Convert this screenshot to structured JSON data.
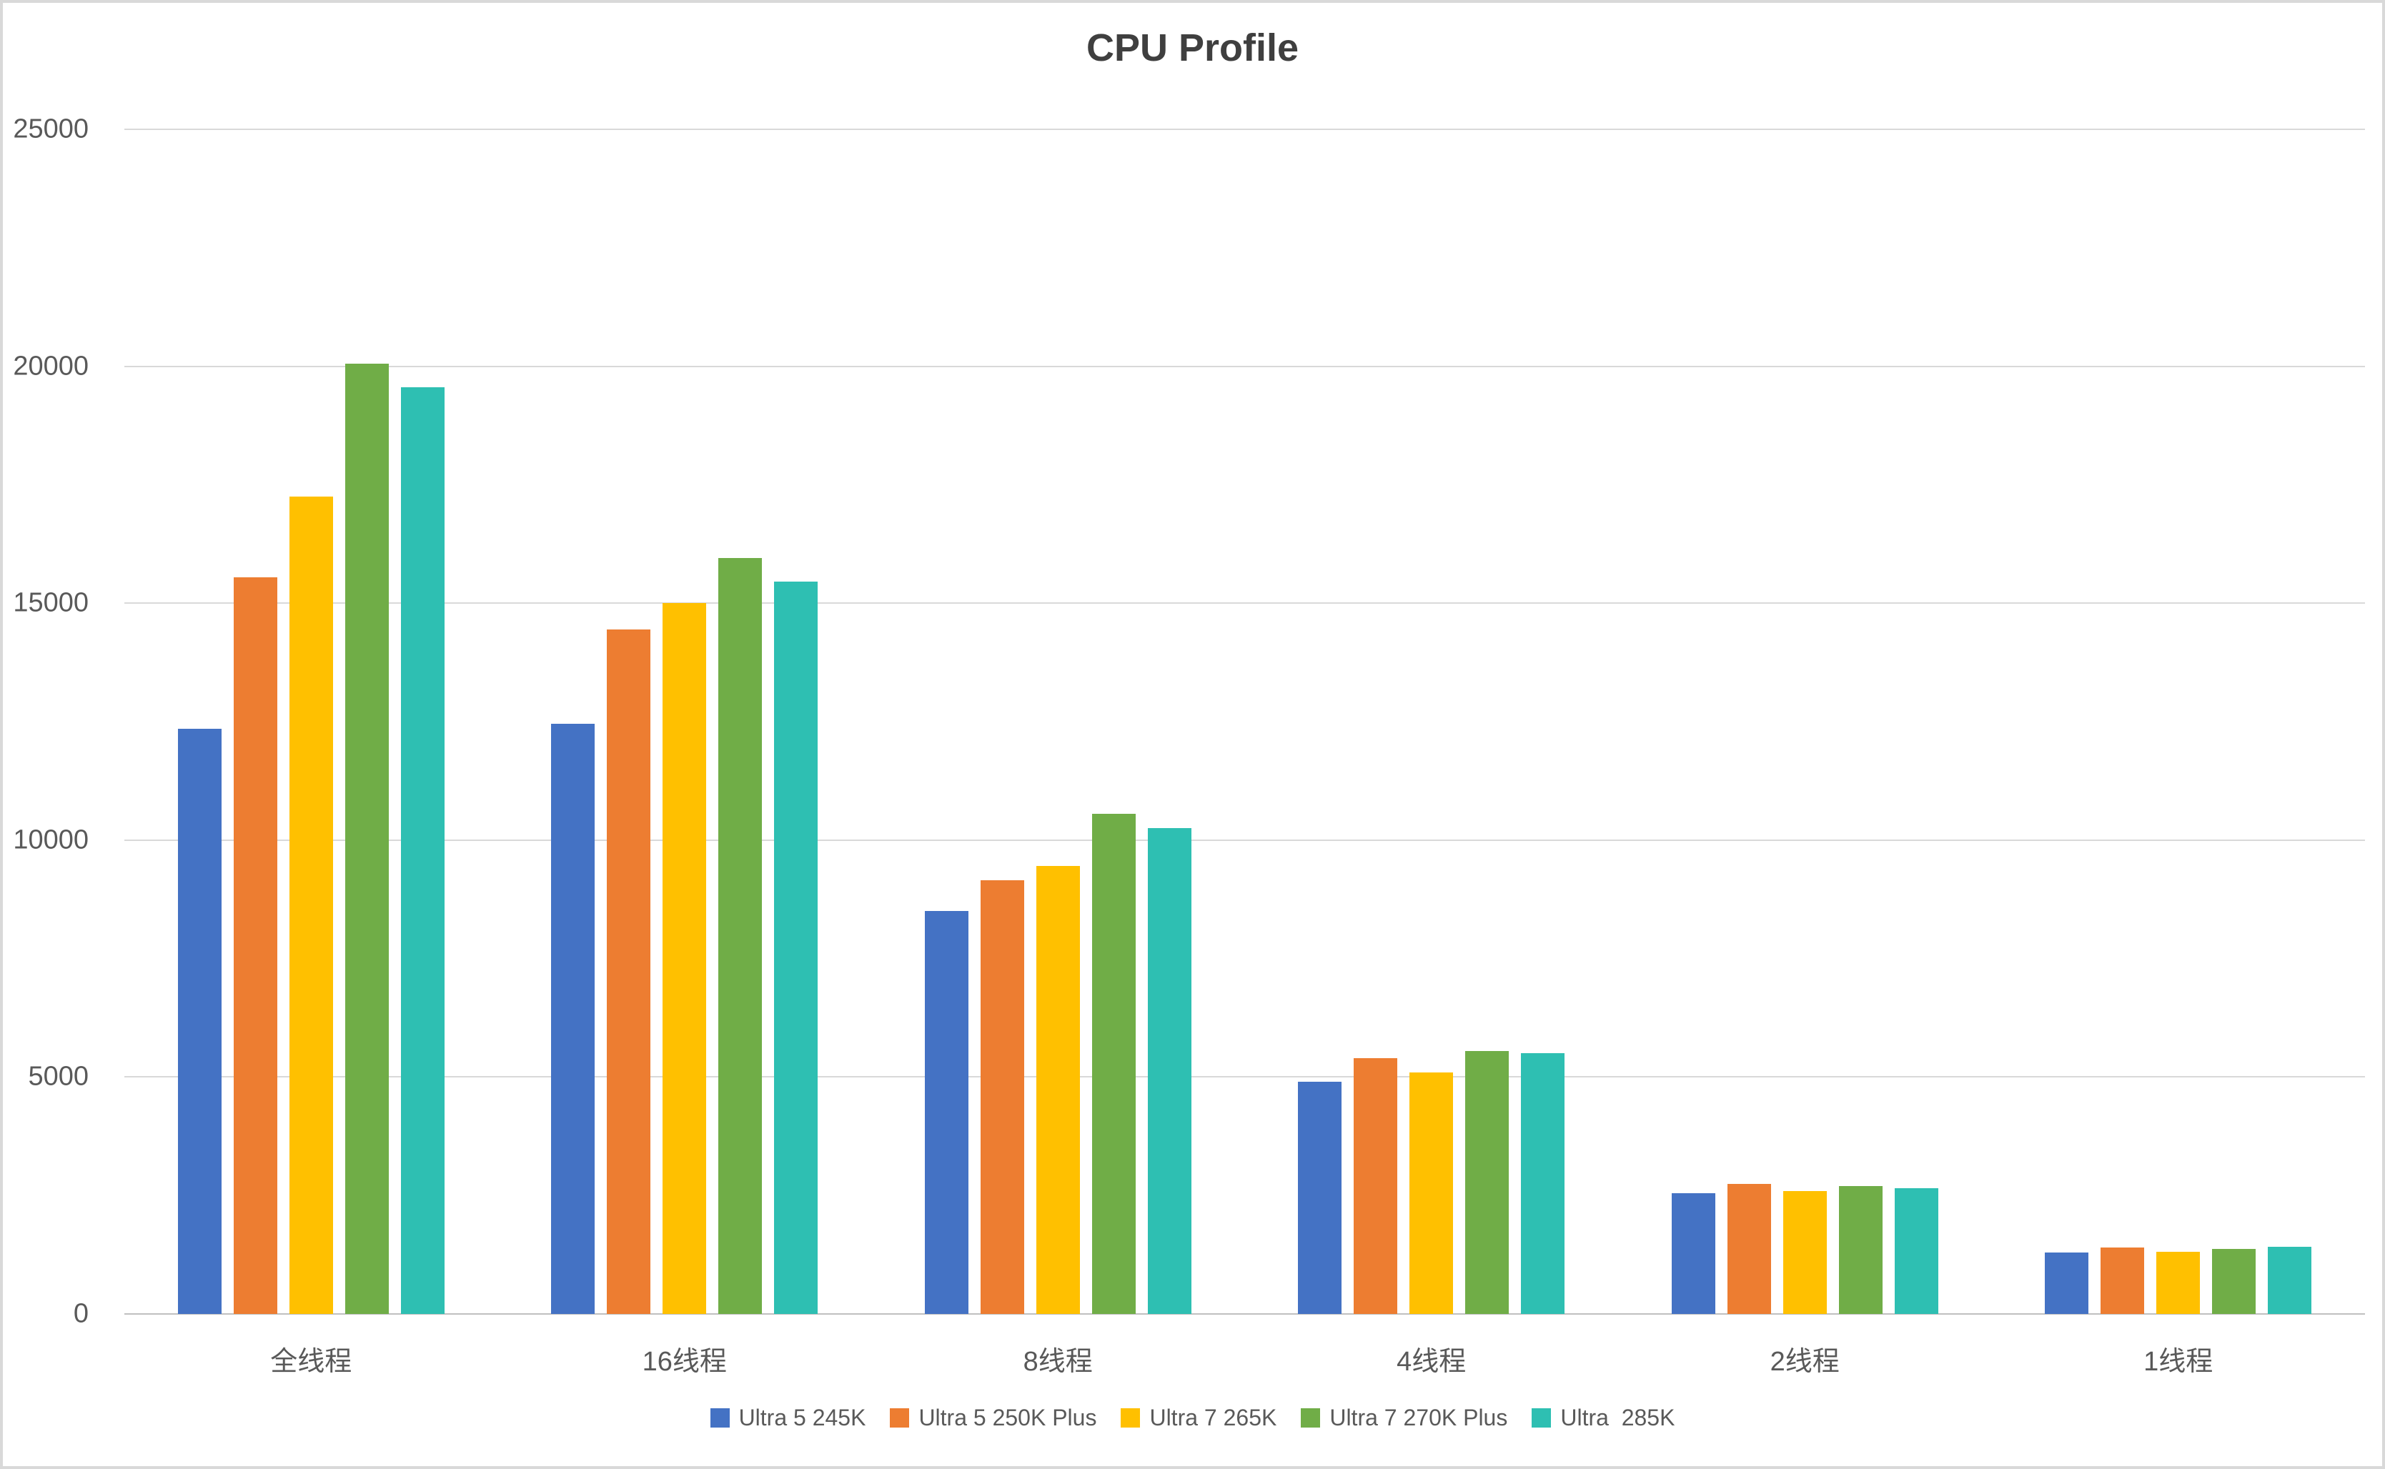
{
  "title": "CPU Profile",
  "colors": {
    "gridline": "#d9d9d9",
    "axis_line": "#c0c0c0",
    "tick_label": "#595959",
    "title_text": "#3f3f3f",
    "frame_border": "#d9d9d9",
    "background": "#ffffff"
  },
  "chart_data": {
    "type": "bar",
    "title": "CPU Profile",
    "xlabel": "",
    "ylabel": "",
    "ylim": [
      0,
      25000
    ],
    "yticks": [
      0,
      5000,
      10000,
      15000,
      20000,
      25000
    ],
    "grid": true,
    "legend_position": "bottom",
    "categories": [
      "全线程",
      "16线程",
      "8线程",
      "4线程",
      "2线程",
      "1线程"
    ],
    "series": [
      {
        "name": "Ultra 5 245K",
        "color": "#4472C4",
        "values": [
          12350,
          12450,
          8500,
          4900,
          2550,
          1300
        ]
      },
      {
        "name": "Ultra 5 250K Plus",
        "color": "#ED7D31",
        "values": [
          15550,
          14450,
          9150,
          5400,
          2750,
          1400
        ]
      },
      {
        "name": "Ultra 7 265K",
        "color": "#FFC000",
        "values": [
          17250,
          15000,
          9450,
          5100,
          2600,
          1310
        ]
      },
      {
        "name": "Ultra 7 270K Plus",
        "color": "#70AD47",
        "values": [
          20050,
          15950,
          10550,
          5550,
          2700,
          1370
        ]
      },
      {
        "name": "Ultra  285K",
        "color": "#2EBFB2",
        "values": [
          19550,
          15450,
          10250,
          5500,
          2650,
          1410
        ]
      }
    ]
  }
}
